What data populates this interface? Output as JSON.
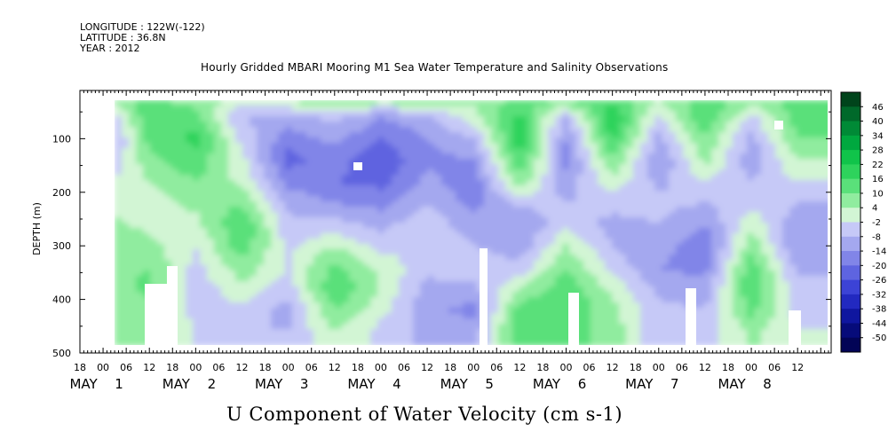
{
  "header": {
    "line1": "LONGITUDE : 122W(-122)",
    "line2": "LATITUDE : 36.8N",
    "line3": "YEAR : 2012"
  },
  "chart_data": {
    "type": "heatmap",
    "title": "Hourly Gridded MBARI Mooring M1 Sea Water Temperature and Salinity Observations",
    "xlabel": "U Component of Water Velocity (cm s-1)",
    "ylabel": "DEPTH (m)",
    "ylim": [
      500,
      10
    ],
    "y_ticks": [
      100,
      200,
      300,
      400,
      500
    ],
    "x_start": "2012-04-30T16:00",
    "x_end": "2012-05-08T14:00",
    "x_hour_ticks": [
      "18",
      "00",
      "06",
      "12",
      "18",
      "00",
      "06",
      "12",
      "18",
      "00",
      "06",
      "12",
      "18",
      "00",
      "06",
      "12",
      "18",
      "00",
      "06",
      "12",
      "18",
      "00",
      "06",
      "12",
      "18",
      "00",
      "06",
      "12",
      "18",
      "00",
      "06",
      "12"
    ],
    "x_day_labels": [
      "MAY 1",
      "MAY 2",
      "MAY 3",
      "MAY 4",
      "MAY 5",
      "MAY 6",
      "MAY 7",
      "MAY 8"
    ],
    "colorbar_levels": [
      "46",
      "40",
      "34",
      "28",
      "22",
      "16",
      "10",
      "4",
      "-2",
      "-8",
      "-14",
      "-20",
      "-26",
      "-32",
      "-38",
      "-44",
      "-50"
    ],
    "colorbar_colors": [
      "#00441b",
      "#00692a",
      "#008a36",
      "#00a83f",
      "#10c44a",
      "#2ed35c",
      "#5ae07a",
      "#90ec9f",
      "#d2f5d4",
      "#c6c9f7",
      "#a4a8ef",
      "#8185e8",
      "#5e64e0",
      "#3c43d6",
      "#2229c0",
      "#0f169f",
      "#060b7a",
      "#020456"
    ],
    "u_velocity_profile_by_time": {
      "depths_m": [
        20,
        60,
        100,
        140,
        180,
        220,
        260,
        300,
        340,
        380,
        420,
        460
      ],
      "times": [
        "05-01 00",
        "05-01 12",
        "05-02 00",
        "05-02 12",
        "05-03 00",
        "05-03 12",
        "05-04 00",
        "05-04 12",
        "05-05 00",
        "05-05 12",
        "05-06 00",
        "05-06 12",
        "05-07 00",
        "05-07 12",
        "05-08 00",
        "05-08 12"
      ],
      "values": [
        [
          14,
          -12,
          -16,
          -10,
          -4,
          2,
          6,
          10,
          8,
          6,
          4,
          6
        ],
        [
          10,
          16,
          12,
          8,
          4,
          0,
          2,
          6,
          10,
          12,
          8,
          4
        ],
        [
          6,
          12,
          18,
          14,
          10,
          6,
          2,
          -2,
          -4,
          -6,
          -4,
          -2
        ],
        [
          4,
          -8,
          -4,
          0,
          2,
          10,
          16,
          14,
          8,
          2,
          -4,
          -8
        ],
        [
          8,
          -10,
          -18,
          -22,
          -16,
          -10,
          -6,
          -4,
          -2,
          -6,
          -10,
          -8
        ],
        [
          16,
          -6,
          -12,
          -18,
          -20,
          -14,
          -6,
          4,
          12,
          16,
          10,
          4
        ],
        [
          12,
          -14,
          -20,
          -24,
          -22,
          -16,
          -10,
          -4,
          2,
          4,
          0,
          -4
        ],
        [
          14,
          -10,
          -14,
          -16,
          -12,
          -8,
          -4,
          -2,
          -6,
          -10,
          -12,
          -10
        ],
        [
          6,
          2,
          -8,
          -14,
          -18,
          -16,
          -12,
          -8,
          -4,
          -10,
          -16,
          -12
        ],
        [
          10,
          18,
          20,
          16,
          8,
          -6,
          -14,
          -12,
          -6,
          4,
          14,
          16
        ],
        [
          18,
          -10,
          -14,
          -16,
          -12,
          -8,
          -4,
          4,
          10,
          14,
          16,
          12
        ],
        [
          12,
          22,
          18,
          10,
          2,
          -6,
          -10,
          -8,
          -4,
          2,
          6,
          8
        ],
        [
          6,
          -4,
          -10,
          -14,
          -10,
          -6,
          -8,
          -12,
          -14,
          -10,
          -6,
          -8
        ],
        [
          14,
          16,
          10,
          6,
          -2,
          -8,
          -14,
          -18,
          -16,
          -12,
          -8,
          -6
        ],
        [
          10,
          -4,
          -10,
          -12,
          -8,
          -4,
          2,
          8,
          14,
          16,
          12,
          6
        ],
        [
          12,
          14,
          10,
          4,
          -2,
          -8,
          -12,
          -14,
          -10,
          -6,
          -4,
          -2
        ]
      ]
    },
    "grid": false,
    "legend": "right colorbar"
  }
}
